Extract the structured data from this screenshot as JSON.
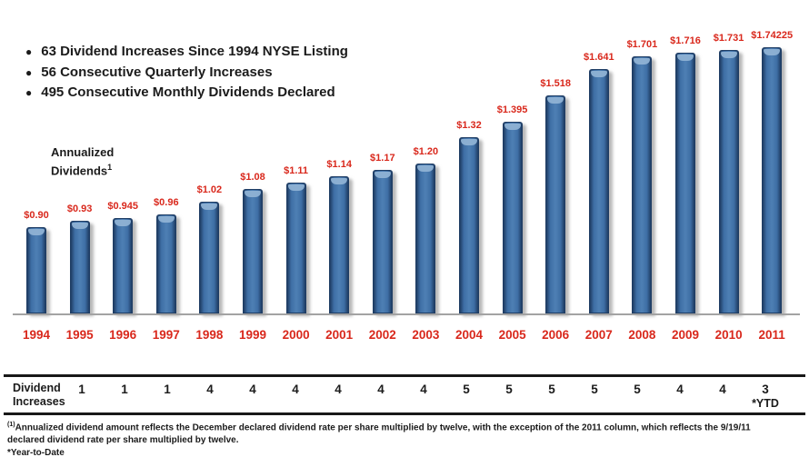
{
  "bullets": [
    "63 Dividend Increases Since 1994 NYSE Listing",
    "56 Consecutive Quarterly Increases",
    "495 Consecutive Monthly Dividends Declared"
  ],
  "axis_label": {
    "text": "Annualized\nDividends",
    "line1": "Annualized",
    "line2": "Dividends",
    "superscript": "1"
  },
  "chart_data": {
    "type": "bar",
    "title": "Annualized Dividends",
    "categories": [
      "1994",
      "1995",
      "1996",
      "1997",
      "1998",
      "1999",
      "2000",
      "2001",
      "2002",
      "2003",
      "2004",
      "2005",
      "2006",
      "2007",
      "2008",
      "2009",
      "2010",
      "2011"
    ],
    "values": [
      0.9,
      0.93,
      0.945,
      0.96,
      1.02,
      1.08,
      1.11,
      1.14,
      1.17,
      1.2,
      1.32,
      1.395,
      1.518,
      1.641,
      1.701,
      1.716,
      1.731,
      1.74225
    ],
    "labels": [
      "$0.90",
      "$0.93",
      "$0.945",
      "$0.96",
      "$1.02",
      "$1.08",
      "$1.11",
      "$1.14",
      "$1.17",
      "$1.20",
      "$1.32",
      "$1.395",
      "$1.518",
      "$1.641",
      "$1.701",
      "$1.716",
      "$1.731",
      "$1.74225"
    ],
    "ylim": [
      0.496,
      1.773
    ],
    "grid": false,
    "legend": false,
    "bar_color": "#3e6ea5",
    "bar_edge_color": "#1f3d64",
    "bar_cap_color": "#8fb2d4",
    "label_color": "#d9281c"
  },
  "table": {
    "row_header": "Dividend Increases",
    "values": [
      "1",
      "1",
      "1",
      "4",
      "4",
      "4",
      "4",
      "4",
      "4",
      "5",
      "5",
      "5",
      "5",
      "5",
      "4",
      "4",
      "3"
    ],
    "value_years": [
      "1995",
      "1996",
      "1997",
      "1998",
      "1999",
      "2000",
      "2001",
      "2002",
      "2003",
      "2004",
      "2005",
      "2006",
      "2007",
      "2008",
      "2009",
      "2010",
      "2011"
    ],
    "last_value_note": "*YTD"
  },
  "footnotes": {
    "note1_sup": "(1)",
    "note1": "Annualized dividend amount reflects the December declared dividend rate per share multiplied by twelve, with the exception of the 2011 column, which reflects the 9/19/11 declared dividend rate per share multiplied by twelve.",
    "note2": "*Year-to-Date"
  }
}
